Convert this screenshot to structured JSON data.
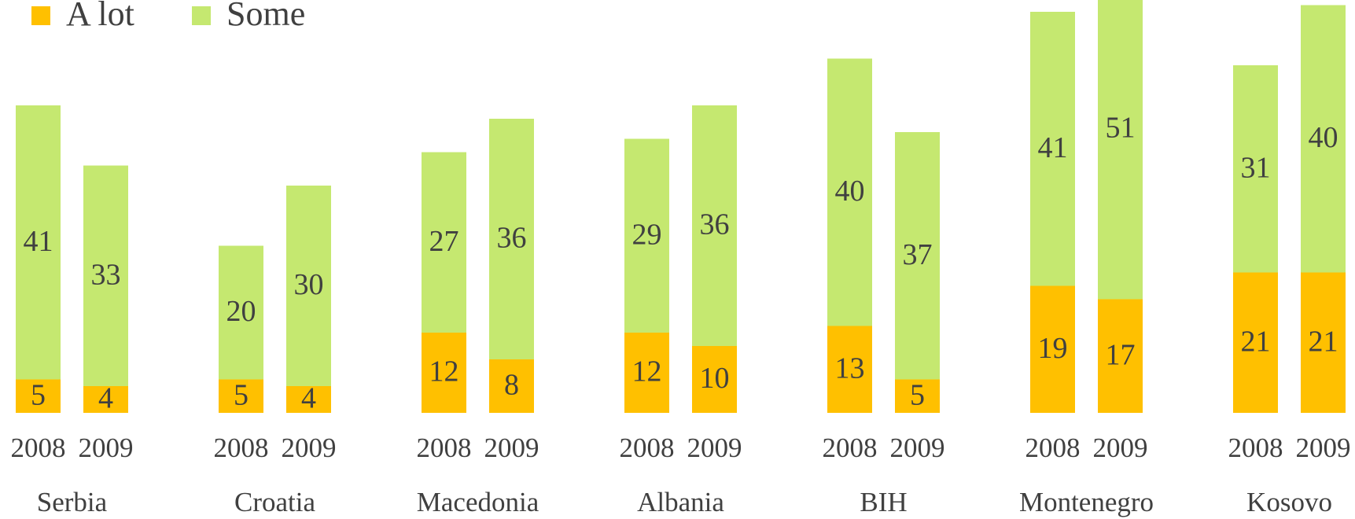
{
  "chart_data": {
    "type": "stacked-bar",
    "groups": [
      "Serbia",
      "Croatia",
      "Macedonia",
      "Albania",
      "BIH",
      "Montenegro",
      "Kosovo"
    ],
    "categories": [
      "2008",
      "2009",
      "2008",
      "2009",
      "2008",
      "2009",
      "2008",
      "2009",
      "2008",
      "2009",
      "2008",
      "2009",
      "2008",
      "2009"
    ],
    "series": [
      {
        "name": "A lot",
        "color": "#ffc000",
        "values": [
          5,
          4,
          5,
          4,
          12,
          8,
          12,
          10,
          13,
          5,
          19,
          17,
          21,
          21
        ]
      },
      {
        "name": "Some",
        "color": "#c5e870",
        "values": [
          41,
          33,
          20,
          30,
          27,
          36,
          29,
          36,
          40,
          37,
          41,
          51,
          31,
          40
        ]
      }
    ],
    "legend": "top-left"
  }
}
